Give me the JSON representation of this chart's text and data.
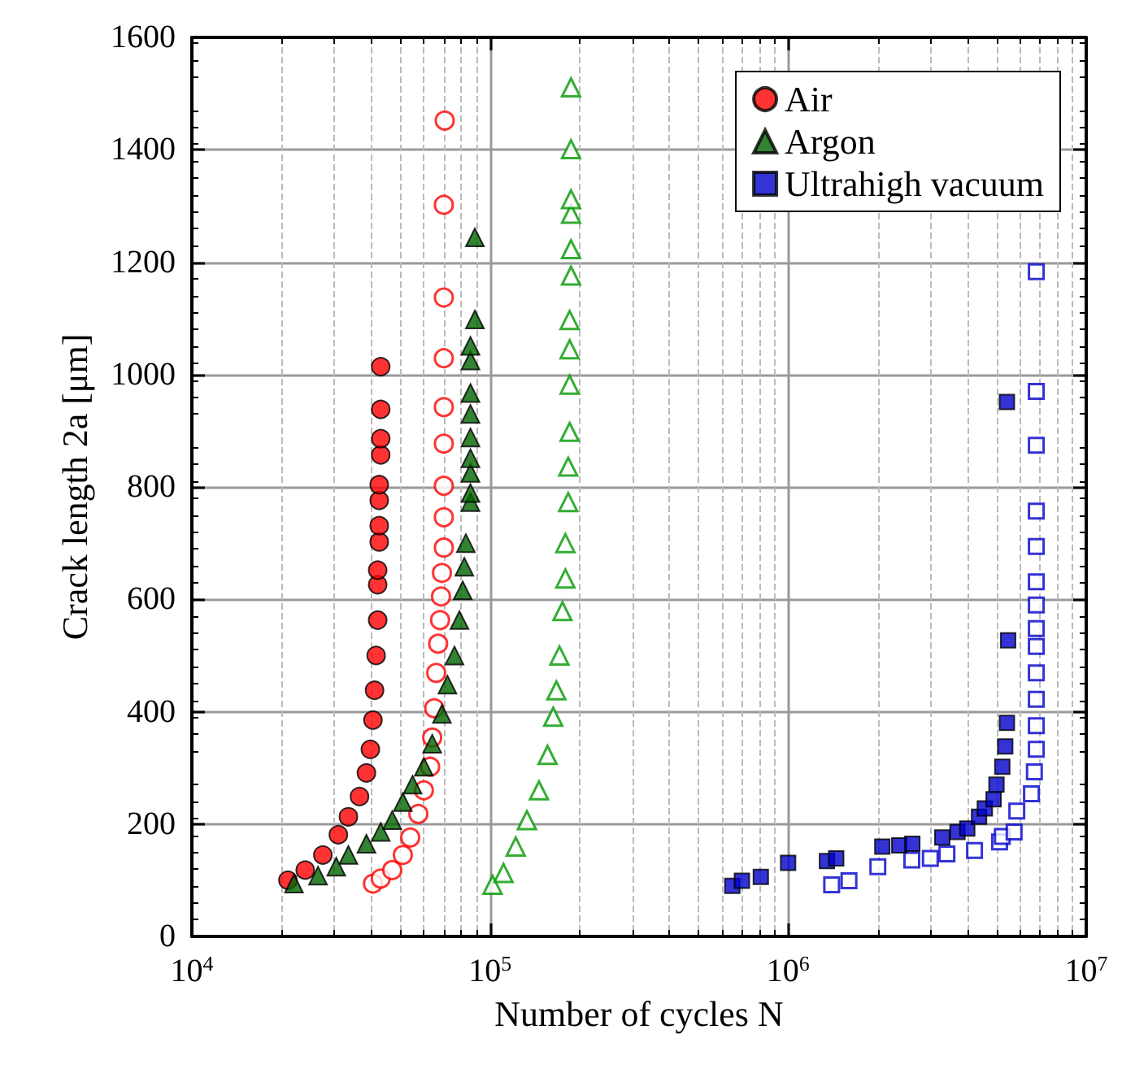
{
  "chart_data": {
    "type": "scatter",
    "xlabel": "Number of cycles N",
    "ylabel": "Crack length 2a [μm]",
    "log": "x",
    "grid": true,
    "legend": "top right",
    "xlim": [
      10000,
      10000000
    ],
    "xticks": [
      {
        "value": 10000,
        "label": "10$^{4}$"
      },
      {
        "value": 100000,
        "label": "10$^{5}$"
      },
      {
        "value": 1000000,
        "label": "10$^{6}$"
      },
      {
        "value": 10000000,
        "label": "10$^{7}$"
      }
    ],
    "ylim": [
      0,
      1600
    ],
    "yticks": [
      0,
      200,
      400,
      600,
      800,
      1000,
      1200,
      1400,
      1600
    ],
    "series": [
      {
        "name": "Air",
        "color": "#ff0000",
        "marker": "circle",
        "x": [
          21000,
          24000,
          27500,
          31000,
          33500,
          36500,
          38500,
          39700,
          40500,
          41000,
          41500,
          42000,
          42000,
          42000,
          42500,
          42500,
          42500,
          42500,
          43000,
          43000,
          43000,
          43000
        ],
        "values": [
          100,
          118,
          145,
          181,
          213,
          249,
          291,
          333,
          385,
          438,
          500,
          563,
          626,
          652,
          702,
          731,
          776,
          804,
          857,
          886,
          938,
          1014
        ]
      },
      {
        "color": "#ff0000",
        "marker": "circle",
        "x": [
          40500,
          43000,
          47000,
          51000,
          54000,
          57500,
          60000,
          63000,
          64000,
          65000,
          66000,
          67000,
          68000,
          68500,
          69000,
          70000,
          70000,
          70000,
          70000,
          70000,
          70000,
          70000,
          70000,
          70500
        ],
        "values": [
          94,
          103,
          118,
          145,
          176,
          218,
          260,
          302,
          354,
          406,
          469,
          521,
          563,
          605,
          647,
          692,
          746,
          802,
          877,
          942,
          1029,
          1137,
          1302,
          1452
        ]
      },
      {
        "name": "Argon",
        "color": "#006400",
        "marker": "triangle",
        "x": [
          22000,
          26500,
          30500,
          33500,
          38500,
          43000,
          47000,
          51000,
          55000,
          60000,
          64000,
          69000,
          72000,
          76000,
          79000,
          81000,
          82000,
          83000,
          86000,
          86000,
          86000,
          86000,
          86000,
          86000,
          86000,
          86000,
          86000,
          89000,
          89000
        ],
        "values": [
          94,
          108,
          124,
          145,
          165,
          186,
          207,
          239,
          270,
          302,
          343,
          396,
          448,
          500,
          563,
          616,
          658,
          700,
          773,
          789,
          825,
          851,
          888,
          930,
          967,
          1025,
          1051,
          1098,
          1244
        ]
      },
      {
        "color": "#009900",
        "marker": "triangle",
        "x": [
          102000,
          111000,
          122000,
          133000,
          146000,
          156000,
          163000,
          167000,
          171000,
          175000,
          179000,
          179000,
          183000,
          183000,
          185000,
          185000,
          185000,
          185000,
          187000,
          187000,
          187000,
          187000,
          187000,
          187000
        ],
        "values": [
          92,
          113,
          160,
          207,
          260,
          323,
          391,
          438,
          500,
          579,
          637,
          700,
          773,
          836,
          898,
          982,
          1045,
          1097,
          1176,
          1223,
          1286,
          1312,
          1401,
          1511
        ]
      },
      {
        "name": "Ultrahigh vacuum",
        "color": "#0000cc",
        "marker": "square",
        "x": [
          650000,
          700000,
          810000,
          1000000,
          1350000,
          1450000,
          2070000,
          2360000,
          2610000,
          3290000,
          3700000,
          3990000,
          4370000,
          4570000,
          4890000,
          5000000,
          5230000,
          5350000,
          5420000,
          5470000,
          5420000
        ],
        "values": [
          90,
          99,
          106,
          131,
          134,
          139,
          160,
          162,
          165,
          176,
          186,
          192,
          213,
          228,
          244,
          270,
          302,
          338,
          380,
          527,
          951
        ]
      },
      {
        "color": "#0000cc",
        "marker": "square",
        "x": [
          1400000,
          1600000,
          2000000,
          2600000,
          3000000,
          3410000,
          4220000,
          5120000,
          5230000,
          5730000,
          5850000,
          6550000,
          6700000,
          6800000,
          6800000,
          6800000,
          6800000,
          6800000,
          6800000,
          6800000,
          6800000,
          6800000,
          6800000,
          6800000,
          6800000,
          6800000
        ],
        "values": [
          92,
          99,
          124,
          136,
          139,
          147,
          153,
          168,
          178,
          186,
          223,
          254,
          293,
          333,
          375,
          422,
          469,
          516,
          548,
          590,
          631,
          694,
          757,
          874,
          970,
          1183
        ]
      }
    ]
  }
}
